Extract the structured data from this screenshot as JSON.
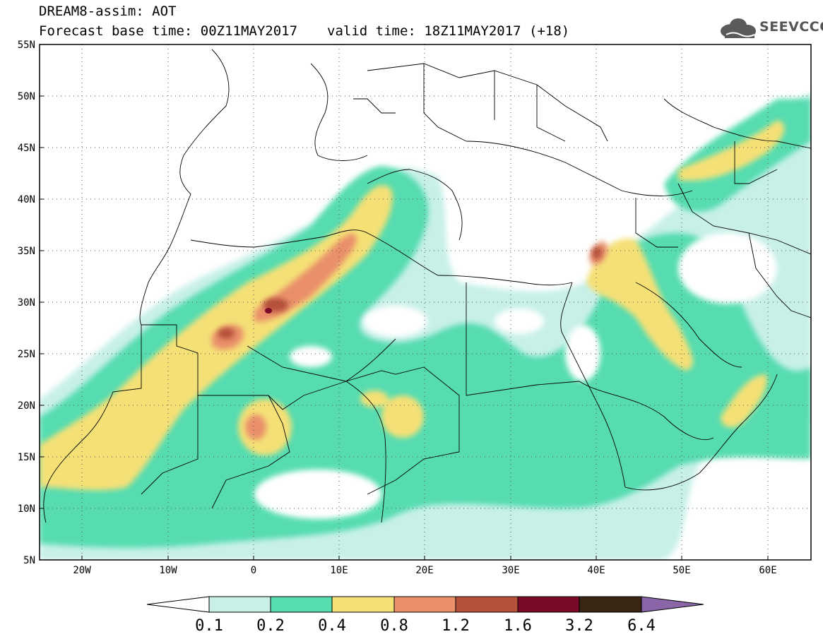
{
  "header": {
    "line1": "DREAM8-assim: AOT",
    "base_time": "Forecast base time: 00Z11MAY2017",
    "valid_time": "valid time: 18Z11MAY2017 (+18)",
    "logo_text": "SEEVCCC"
  },
  "map": {
    "lat_labels": [
      "55N",
      "50N",
      "45N",
      "40N",
      "35N",
      "30N",
      "25N",
      "20N",
      "15N",
      "10N",
      "5N"
    ],
    "lon_labels": [
      "20W",
      "10W",
      "0",
      "10E",
      "20E",
      "30E",
      "40E",
      "50E",
      "60E"
    ],
    "lon_range": [
      -25,
      65
    ],
    "lat_range": [
      5,
      55
    ],
    "grid": "dotted"
  },
  "colorbar": {
    "labels": [
      "0.1",
      "0.2",
      "0.4",
      "0.8",
      "1.2",
      "1.6",
      "3.2",
      "6.4"
    ],
    "colors": [
      "#ffffff",
      "#c8f0e8",
      "#56dcb0",
      "#f5e076",
      "#e9906a",
      "#b5503a",
      "#7a0a28",
      "#3a2614",
      "#8a66a8"
    ]
  },
  "legend_colors": {
    "band_0_1": "#c8f0e8",
    "band_0_2": "#56dcb0",
    "band_0_4": "#f5e076",
    "band_0_8": "#e9906a",
    "band_1_2": "#b5503a",
    "band_1_6": "#7a0a28"
  }
}
